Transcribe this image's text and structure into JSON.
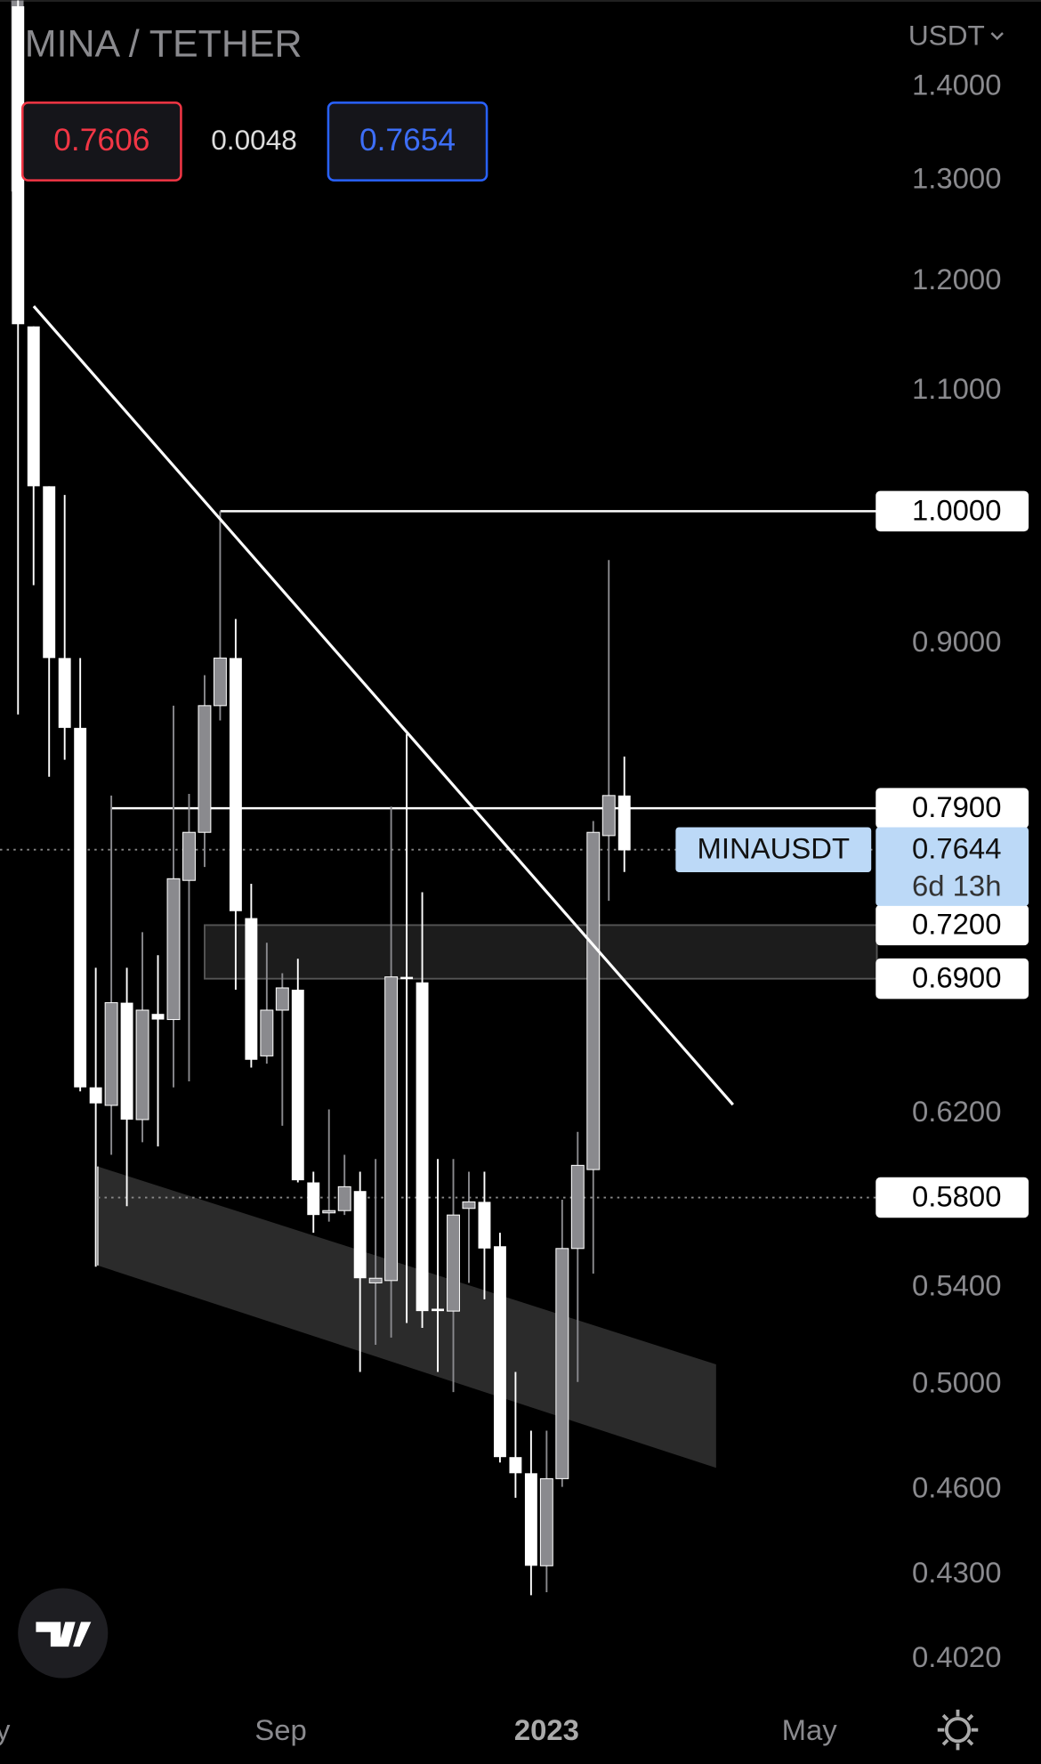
{
  "chart_data": {
    "type": "candlestick",
    "title": "MINA / TETHER",
    "currency": "USDT",
    "quote": {
      "bid": 0.7606,
      "spread": 0.0048,
      "ask": 0.7654
    },
    "symbol": "MINAUSDT",
    "last_price": 0.7644,
    "countdown": "6d 13h",
    "up_color": "#8a8a8e",
    "down_color": "#ffffff",
    "categories": [
      null,
      null,
      null,
      null,
      null,
      null,
      null,
      null,
      null,
      null,
      null,
      null,
      null,
      null,
      null,
      null,
      null,
      null,
      null,
      null,
      null,
      null,
      null,
      null,
      null,
      null,
      null,
      null,
      null,
      null,
      null,
      null,
      null,
      null,
      null,
      null,
      null,
      null,
      null,
      null
    ],
    "open": [
      1.493,
      1.158,
      1.02,
      0.89,
      0.842,
      0.633,
      0.624,
      0.677,
      0.617,
      0.671,
      0.668,
      0.746,
      0.775,
      0.857,
      0.89,
      0.724,
      0.649,
      0.673,
      0.684,
      0.587,
      0.573,
      0.574,
      0.583,
      0.542,
      0.543,
      0.691,
      0.688,
      0.531,
      0.53,
      0.575,
      0.578,
      0.558,
      0.472,
      0.466,
      0.433,
      0.464,
      0.557,
      0.593,
      0.773,
      0.798
    ],
    "high": [
      1.5,
      1.158,
      1.02,
      1.013,
      0.89,
      0.696,
      0.798,
      0.696,
      0.716,
      0.703,
      0.857,
      0.799,
      0.878,
      1.0,
      0.918,
      0.744,
      0.71,
      0.693,
      0.701,
      0.592,
      0.622,
      0.6,
      0.592,
      0.598,
      0.791,
      0.838,
      0.739,
      0.598,
      0.598,
      0.592,
      0.592,
      0.564,
      0.505,
      0.482,
      0.482,
      0.579,
      0.611,
      0.782,
      0.962,
      0.823
    ],
    "low": [
      0.851,
      0.943,
      0.81,
      0.821,
      0.631,
      0.549,
      0.6,
      0.576,
      0.606,
      0.604,
      0.633,
      0.636,
      0.754,
      0.847,
      0.684,
      0.643,
      0.645,
      0.614,
      0.587,
      0.564,
      0.569,
      0.572,
      0.505,
      0.516,
      0.519,
      0.525,
      0.523,
      0.505,
      0.497,
      0.542,
      0.535,
      0.47,
      0.457,
      0.423,
      0.424,
      0.461,
      0.501,
      0.546,
      0.734,
      0.751
    ],
    "close": [
      1.16,
      1.02,
      0.89,
      0.842,
      0.633,
      0.625,
      0.677,
      0.617,
      0.673,
      0.668,
      0.747,
      0.775,
      0.857,
      0.89,
      0.728,
      0.647,
      0.673,
      0.685,
      0.588,
      0.572,
      0.574,
      0.585,
      0.544,
      0.544,
      0.691,
      0.69,
      0.53,
      0.53,
      0.572,
      0.578,
      0.557,
      0.472,
      0.466,
      0.433,
      0.464,
      0.557,
      0.595,
      0.775,
      0.798,
      0.764
    ],
    "log_scale": true,
    "ylim": [
      0.388,
      1.5
    ],
    "yticks": [
      {
        "value": 1.4,
        "label": "1.4000"
      },
      {
        "value": 1.3,
        "label": "1.3000"
      },
      {
        "value": 1.2,
        "label": "1.2000"
      },
      {
        "value": 1.1,
        "label": "1.1000"
      },
      {
        "value": 0.9,
        "label": "0.9000"
      },
      {
        "value": 0.62,
        "label": "0.6200"
      },
      {
        "value": 0.54,
        "label": "0.5400"
      },
      {
        "value": 0.5,
        "label": "0.5000"
      },
      {
        "value": 0.46,
        "label": "0.4600"
      },
      {
        "value": 0.43,
        "label": "0.4300"
      },
      {
        "value": 0.402,
        "label": "0.4020"
      }
    ],
    "xlim": [
      -1.16,
      65.8
    ],
    "xticks": [
      {
        "value": -1.5,
        "label": "ay"
      },
      {
        "value": 16.9,
        "label": "Sep"
      },
      {
        "value": 34,
        "label": "2023"
      },
      {
        "value": 50.9,
        "label": "May"
      }
    ],
    "levels": [
      {
        "value": 1,
        "label": "1.0000"
      },
      {
        "value": 0.79,
        "label": "0.7900"
      },
      {
        "value": 0.72,
        "label": "0.7200"
      },
      {
        "value": 0.69,
        "label": "0.6900"
      },
      {
        "value": 0.58,
        "label": "0.5800"
      }
    ],
    "grid": false
  }
}
